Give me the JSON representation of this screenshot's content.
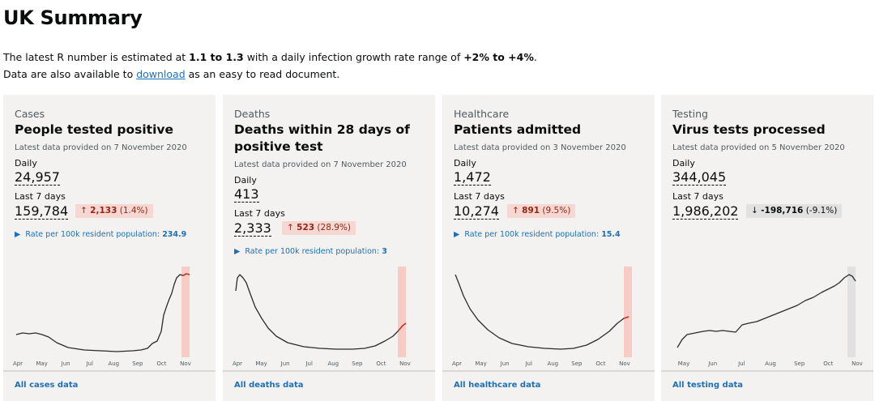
{
  "page": {
    "title": "UK Summary",
    "intro_prefix": "The latest R number is estimated at ",
    "r_range": "1.1 to 1.3",
    "intro_middle": " with a daily infection growth rate range of ",
    "growth_range": "+2% to +4%",
    "intro_end": ".",
    "download_prefix": "Data are also available to ",
    "download_link": "download",
    "download_suffix": " as an easy to read document."
  },
  "cards": {
    "cases": {
      "category": "Cases",
      "heading": "People tested positive",
      "latest": "Latest data provided on 7 November 2020",
      "daily_label": "Daily",
      "daily": "24,957",
      "week_label": "Last 7 days",
      "week": "159,784",
      "change_arrow": "↑",
      "change_value": "2,133",
      "change_pct": "(1.4%)",
      "rate_label": "Rate per 100k resident population:",
      "rate_value": "234.9",
      "months": [
        "Apr",
        "May",
        "Jun",
        "Jul",
        "Aug",
        "Sep",
        "Oct",
        "Nov"
      ],
      "footer": "All cases data"
    },
    "deaths": {
      "category": "Deaths",
      "heading": "Deaths within 28 days of positive test",
      "latest": "Latest data provided on 7 November 2020",
      "daily_label": "Daily",
      "daily": "413",
      "week_label": "Last 7 days",
      "week": "2,333",
      "change_arrow": "↑",
      "change_value": "523",
      "change_pct": "(28.9%)",
      "rate_label": "Rate per 100k resident population:",
      "rate_value": "3",
      "months": [
        "Apr",
        "May",
        "Jun",
        "Jul",
        "Aug",
        "Sep",
        "Oct",
        "Nov"
      ],
      "footer": "All deaths data"
    },
    "healthcare": {
      "category": "Healthcare",
      "heading": "Patients admitted",
      "latest": "Latest data provided on 3 November 2020",
      "daily_label": "Daily",
      "daily": "1,472",
      "week_label": "Last 7 days",
      "week": "10,274",
      "change_arrow": "↑",
      "change_value": "891",
      "change_pct": "(9.5%)",
      "rate_label": "Rate per 100k resident population:",
      "rate_value": "15.4",
      "months": [
        "Apr",
        "May",
        "Jun",
        "Jul",
        "Aug",
        "Sep",
        "Oct",
        "Nov"
      ],
      "footer": "All healthcare data"
    },
    "testing": {
      "category": "Testing",
      "heading": "Virus tests processed",
      "latest": "Latest data provided on 5 November 2020",
      "daily_label": "Daily",
      "daily": "344,045",
      "week_label": "Last 7 days",
      "week": "1,986,202",
      "change_arrow": "↓",
      "change_value": "-198,716",
      "change_pct": "(-9.1%)",
      "months": [
        "May",
        "Jun",
        "Jul",
        "Aug",
        "Sep",
        "Oct",
        "Nov"
      ],
      "footer": "All testing data"
    }
  },
  "colors": {
    "line": "#2b2b2b",
    "highlight_up": "#f6c6bd",
    "highlight_line_up": "#c0392b",
    "highlight_neutral": "#dedede",
    "link": "#1d70b8"
  }
}
